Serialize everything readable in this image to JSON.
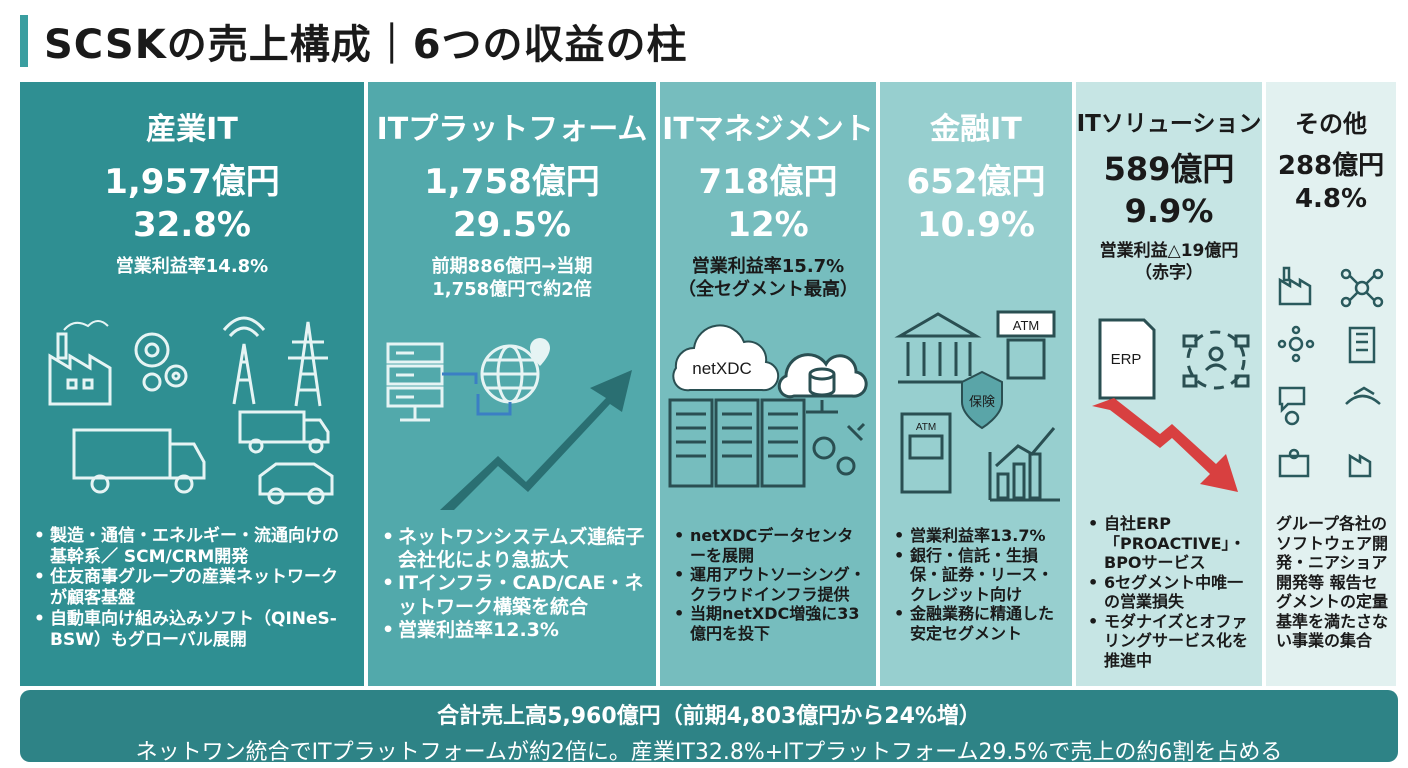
{
  "header": {
    "title": "SCSKの売上構成｜6つの収益の柱"
  },
  "segments": [
    {
      "name": "産業IT",
      "amount": "1,957億円",
      "share": "32.8%",
      "note": [
        "営業利益率14.8%"
      ],
      "bullets": [
        "製造・通信・エネルギー・流通向けの基幹系／ SCM/CRM開発",
        "住友商事グループの産業ネットワークが顧客基盤",
        "自動車向け組み込みソフト（QINeS-BSW）もグローバル展開"
      ]
    },
    {
      "name": "ITプラットフォーム",
      "amount": "1,758億円",
      "share": "29.5%",
      "note": [
        "前期886億円→当期",
        "1,758億円で約2倍"
      ],
      "bullets": [
        "ネットワンシステムズ連結子会社化により急拡大",
        "ITインフラ・CAD/CAE・ネットワーク構築を統合",
        "営業利益率12.3%"
      ]
    },
    {
      "name": "ITマネジメント",
      "amount": "718億円",
      "share": "12%",
      "note": [
        "営業利益率15.7%",
        "（全セグメント最高）"
      ],
      "bullets": [
        "netXDCデータセンターを展開",
        "運用アウトソーシング・クラウドインフラ提供",
        "当期netXDC増強に33億円を投下"
      ]
    },
    {
      "name": "金融IT",
      "amount": "652億円",
      "share": "10.9%",
      "note": [],
      "bullets": [
        "営業利益率13.7%",
        "銀行・信託・生損保・証券・リース・クレジット向け",
        "金融業務に精通した安定セグメント"
      ]
    },
    {
      "name": "ITソリューション",
      "amount": "589億円",
      "share": "9.9%",
      "note": [
        "営業利益△19億円",
        "（赤字）"
      ],
      "bullets": [
        "自社ERP「PROACTIVE」・BPOサービス",
        "6セグメント中唯一の営業損失",
        "モダナイズとオファリングサービス化を推進中"
      ]
    },
    {
      "name": "その他",
      "amount": "288億円",
      "share": "4.8%",
      "note": [],
      "description": "グループ各社のソフトウェア開発・ニアショア開発等 報告セグメントの定量基準を満たさない事業の集合"
    }
  ],
  "art_labels": {
    "netxdc": "netXDC",
    "atm1": "ATM",
    "atm2": "ATM",
    "insurance": "保険",
    "erp": "ERP"
  },
  "icons": [
    "factory-icon",
    "gears-icon",
    "radio-tower-icon",
    "power-pylon-icon",
    "truck-icon",
    "car-icon",
    "server-rack-icon",
    "globe-icon",
    "location-pin-icon",
    "growth-arrow-icon",
    "cloud-icon",
    "database-icon",
    "bank-icon",
    "atm-icon",
    "shield-icon",
    "bar-chart-icon",
    "document-icon",
    "decline-arrow-icon"
  ],
  "colors": {
    "accent": "#3a9ea0",
    "p1": "#2f8f92",
    "p2": "#52a9ab",
    "p3": "#76bdbe",
    "p4": "#97cfcf",
    "p5": "#c6e5e4",
    "p6": "#e2f1f0",
    "footer": "#2e8386",
    "red_arrow": "#d84040"
  },
  "footer": {
    "line1": "合計売上高5,960億円（前期4,803億円から24%増）",
    "line2": "ネットワン統合でITプラットフォームが約2倍に。産業IT32.8%+ITプラットフォーム29.5%で売上の約6割を占める"
  }
}
